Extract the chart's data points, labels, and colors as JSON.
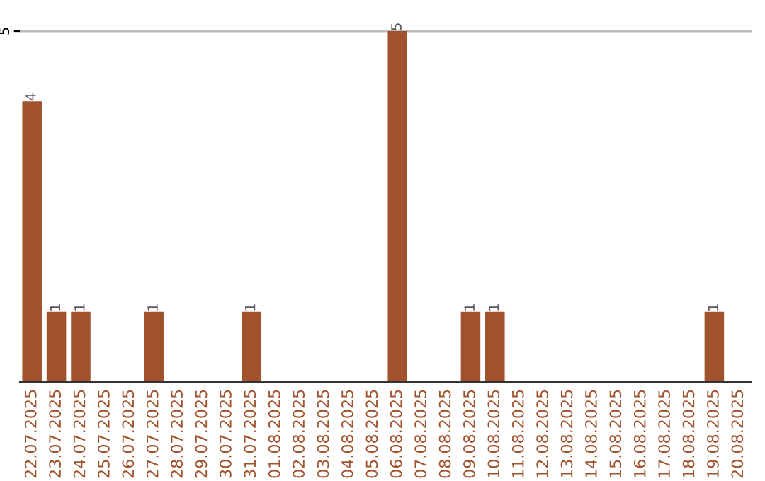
{
  "chart_data": {
    "type": "bar",
    "categories": [
      "22.07.2025",
      "23.07.2025",
      "24.07.2025",
      "25.07.2025",
      "26.07.2025",
      "27.07.2025",
      "28.07.2025",
      "29.07.2025",
      "30.07.2025",
      "31.07.2025",
      "01.08.2025",
      "02.08.2025",
      "03.08.2025",
      "04.08.2025",
      "05.08.2025",
      "06.08.2025",
      "07.08.2025",
      "08.08.2025",
      "09.08.2025",
      "10.08.2025",
      "11.08.2025",
      "12.08.2025",
      "13.08.2025",
      "14.08.2025",
      "15.08.2025",
      "16.08.2025",
      "17.08.2025",
      "18.08.2025",
      "19.08.2025",
      "20.08.2025"
    ],
    "values": [
      4,
      1,
      1,
      0,
      0,
      1,
      0,
      0,
      0,
      1,
      0,
      0,
      0,
      0,
      0,
      5,
      0,
      0,
      1,
      1,
      0,
      0,
      0,
      0,
      0,
      0,
      0,
      0,
      1,
      0
    ],
    "value_labels": [
      "4",
      "1",
      "1",
      null,
      null,
      "1",
      null,
      null,
      null,
      "1",
      null,
      null,
      null,
      null,
      null,
      "5",
      null,
      null,
      "1",
      "1",
      null,
      null,
      null,
      null,
      null,
      null,
      null,
      null,
      "1",
      null
    ],
    "color": "#a0522d",
    "ylim": [
      0,
      5
    ],
    "yticks": [
      5
    ],
    "ref_lines": [
      {
        "axis": "y",
        "value": 5,
        "color": "#bbbbbb"
      }
    ]
  }
}
